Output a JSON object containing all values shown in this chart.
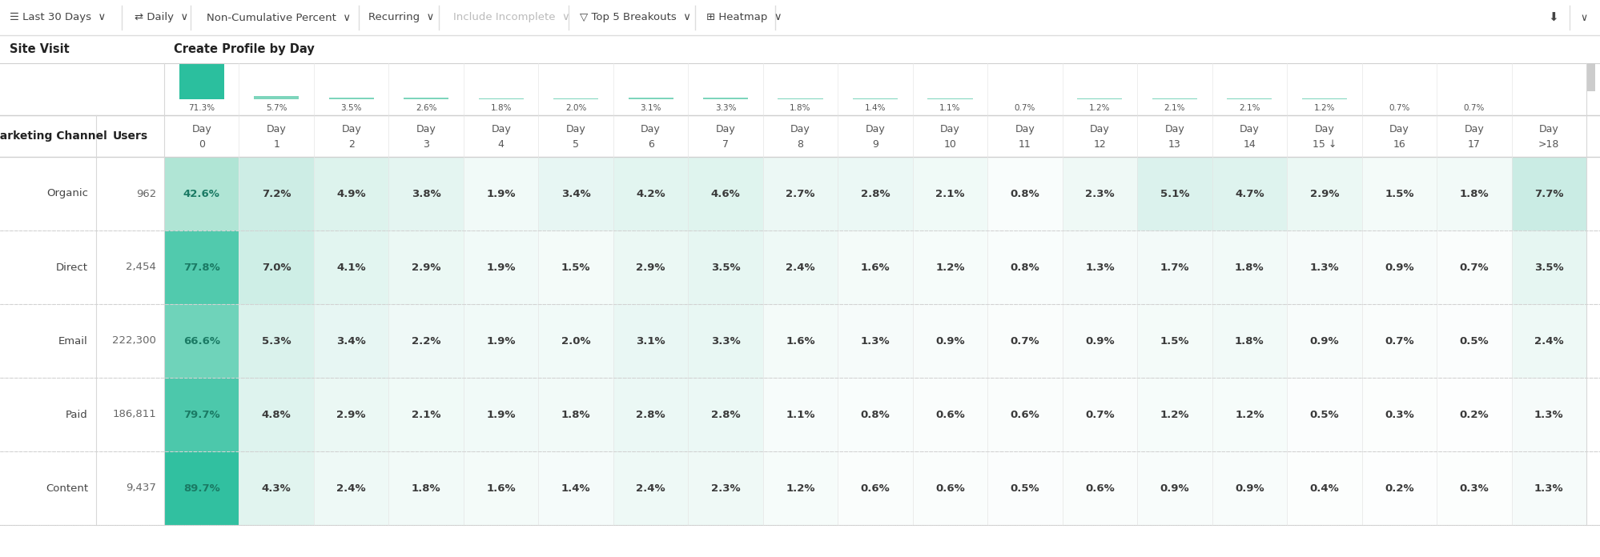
{
  "left_label": "Site Visit",
  "top_label": "Create Profile by Day",
  "header_row_label": "Marketing Channel",
  "header_users_label": "Users",
  "day_labels_num": [
    "0",
    "1",
    "2",
    "3",
    "4",
    "5",
    "6",
    "7",
    "8",
    "9",
    "10",
    "11",
    "12",
    "13",
    "14",
    "15",
    "16",
    "17",
    ">18"
  ],
  "day15_arrow": true,
  "summary_values": [
    71.3,
    5.7,
    3.5,
    2.6,
    1.8,
    2.0,
    3.1,
    3.3,
    1.8,
    1.4,
    1.1,
    0.7,
    1.2,
    2.1,
    2.1,
    1.2,
    0.7,
    0.7,
    null
  ],
  "channels": [
    "Organic",
    "Direct",
    "Email",
    "Paid",
    "Content"
  ],
  "users": [
    "962",
    "2,454",
    "222,300",
    "186,811",
    "9,437"
  ],
  "data": [
    [
      42.6,
      7.2,
      4.9,
      3.8,
      1.9,
      3.4,
      4.2,
      4.6,
      2.7,
      2.8,
      2.1,
      0.8,
      2.3,
      5.1,
      4.7,
      2.9,
      1.5,
      1.8,
      7.7
    ],
    [
      77.8,
      7.0,
      4.1,
      2.9,
      1.9,
      1.5,
      2.9,
      3.5,
      2.4,
      1.6,
      1.2,
      0.8,
      1.3,
      1.7,
      1.8,
      1.3,
      0.9,
      0.7,
      3.5
    ],
    [
      66.6,
      5.3,
      3.4,
      2.2,
      1.9,
      2.0,
      3.1,
      3.3,
      1.6,
      1.3,
      0.9,
      0.7,
      0.9,
      1.5,
      1.8,
      0.9,
      0.7,
      0.5,
      2.4
    ],
    [
      79.7,
      4.8,
      2.9,
      2.1,
      1.9,
      1.8,
      2.8,
      2.8,
      1.1,
      0.8,
      0.6,
      0.6,
      0.7,
      1.2,
      1.2,
      0.5,
      0.3,
      0.2,
      1.3
    ],
    [
      89.7,
      4.3,
      2.4,
      1.8,
      1.6,
      1.4,
      2.4,
      2.3,
      1.2,
      0.6,
      0.6,
      0.5,
      0.6,
      0.9,
      0.9,
      0.4,
      0.2,
      0.3,
      1.3
    ]
  ],
  "bg_color": "#ffffff",
  "toolbar_text_color": "#444444",
  "toolbar_disabled_color": "#bbbbbb",
  "table_border_color": "#d8d8d8",
  "row_separator_color": "#d8d8d8",
  "col_separator_color": "#e5e5e5",
  "header_text_color": "#333333",
  "cell_text_color": "#3a3a3a",
  "teal_dark": "#2bbf9e",
  "teal_mid_high": "#3ec9a8",
  "teal_mid": "#7dd5bc",
  "teal_light": "#c5ede3",
  "teal_vlight": "#e0f5ef",
  "teal_vvlight": "#f0faf7",
  "summary_bar_main": "#2bbf9e",
  "summary_bar_small": "#7dd5bc"
}
